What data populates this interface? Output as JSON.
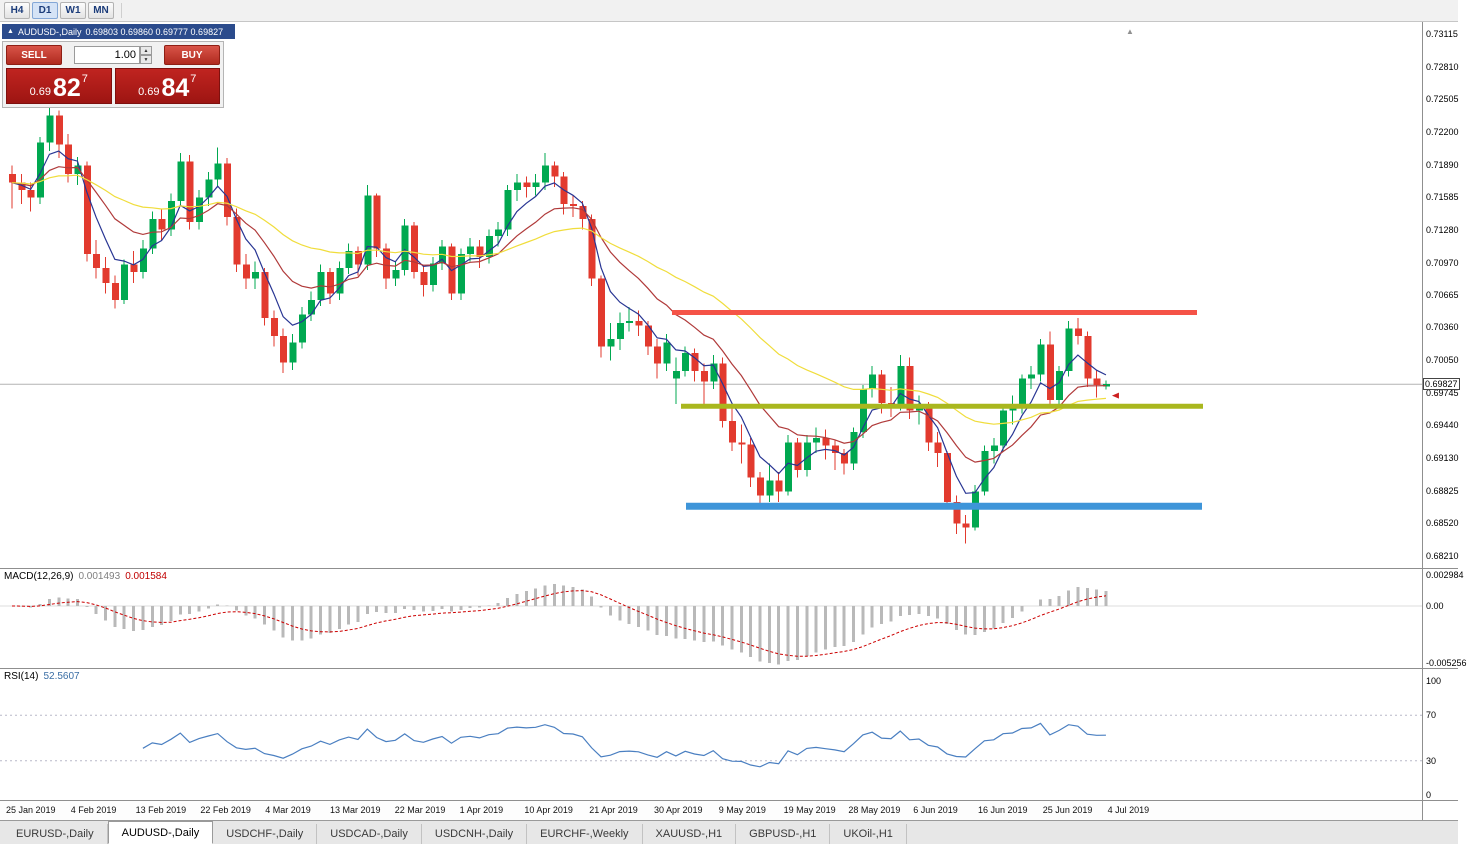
{
  "toolbar": {
    "timeframes": [
      "H4",
      "D1",
      "W1",
      "MN"
    ],
    "active_timeframe": "D1"
  },
  "chart_window": {
    "title_symbol": "AUDUSD-,Daily",
    "title_ohlc": "0.69803 0.69860 0.69777 0.69827",
    "current_price": "0.69827",
    "price_scale_labels": [
      "0.73115",
      "0.72810",
      "0.72505",
      "0.72200",
      "0.71890",
      "0.71585",
      "0.71280",
      "0.70970",
      "0.70665",
      "0.70360",
      "0.70050",
      "0.69745",
      "0.69440",
      "0.69130",
      "0.68825",
      "0.68520",
      "0.68210"
    ],
    "date_axis_labels": [
      "25 Jan 2019",
      "4 Feb 2019",
      "13 Feb 2019",
      "22 Feb 2019",
      "4 Mar 2019",
      "13 Mar 2019",
      "22 Mar 2019",
      "1 Apr 2019",
      "10 Apr 2019",
      "21 Apr 2019",
      "30 Apr 2019",
      "9 May 2019",
      "19 May 2019",
      "28 May 2019",
      "6 Jun 2019",
      "16 Jun 2019",
      "25 Jun 2019",
      "4 Jul 2019"
    ]
  },
  "one_click_trading": {
    "sell_label": "SELL",
    "buy_label": "BUY",
    "volume": "1.00",
    "bid": {
      "prefix": "0.69",
      "big": "82",
      "sup": "7"
    },
    "ask": {
      "prefix": "0.69",
      "big": "84",
      "sup": "7"
    }
  },
  "chart_data": {
    "type": "candlestick",
    "symbol": "AUDUSD",
    "timeframe": "Daily",
    "last_bar": {
      "open": 0.69803,
      "high": 0.6986,
      "low": 0.69777,
      "close": 0.69827
    },
    "y_range": [
      0.681,
      0.7323
    ],
    "bull_color": "#00a850",
    "bear_color": "#e23a2e",
    "candles": [
      [
        0.718,
        0.7188,
        0.7148,
        0.7172
      ],
      [
        0.7172,
        0.718,
        0.7152,
        0.7165
      ],
      [
        0.7165,
        0.7172,
        0.7145,
        0.7158
      ],
      [
        0.7158,
        0.7215,
        0.7152,
        0.721
      ],
      [
        0.721,
        0.7243,
        0.7202,
        0.7235
      ],
      [
        0.7235,
        0.724,
        0.7195,
        0.7208
      ],
      [
        0.7208,
        0.7218,
        0.7172,
        0.718
      ],
      [
        0.718,
        0.7196,
        0.717,
        0.7188
      ],
      [
        0.7188,
        0.7192,
        0.7098,
        0.7105
      ],
      [
        0.7105,
        0.7118,
        0.7082,
        0.7092
      ],
      [
        0.7092,
        0.7102,
        0.7068,
        0.7078
      ],
      [
        0.7078,
        0.7085,
        0.7054,
        0.7062
      ],
      [
        0.7062,
        0.71,
        0.7058,
        0.7095
      ],
      [
        0.7095,
        0.7108,
        0.7078,
        0.7088
      ],
      [
        0.7088,
        0.7118,
        0.7082,
        0.711
      ],
      [
        0.711,
        0.7145,
        0.7105,
        0.7138
      ],
      [
        0.7138,
        0.7148,
        0.7118,
        0.7128
      ],
      [
        0.7128,
        0.7162,
        0.7122,
        0.7155
      ],
      [
        0.7155,
        0.72,
        0.715,
        0.7192
      ],
      [
        0.7192,
        0.7198,
        0.7128,
        0.7135
      ],
      [
        0.7135,
        0.7165,
        0.7128,
        0.7158
      ],
      [
        0.7158,
        0.7182,
        0.715,
        0.7175
      ],
      [
        0.7175,
        0.7205,
        0.7168,
        0.719
      ],
      [
        0.719,
        0.7195,
        0.7132,
        0.714
      ],
      [
        0.714,
        0.7148,
        0.7088,
        0.7095
      ],
      [
        0.7095,
        0.7105,
        0.7072,
        0.7082
      ],
      [
        0.7082,
        0.7098,
        0.7072,
        0.7088
      ],
      [
        0.7088,
        0.7092,
        0.7038,
        0.7045
      ],
      [
        0.7045,
        0.7052,
        0.7018,
        0.7028
      ],
      [
        0.7028,
        0.7035,
        0.6993,
        0.7003
      ],
      [
        0.7003,
        0.703,
        0.6996,
        0.7022
      ],
      [
        0.7022,
        0.7055,
        0.7016,
        0.7048
      ],
      [
        0.7048,
        0.707,
        0.7042,
        0.7062
      ],
      [
        0.7062,
        0.7095,
        0.7056,
        0.7088
      ],
      [
        0.7088,
        0.7092,
        0.7058,
        0.7068
      ],
      [
        0.7068,
        0.7098,
        0.7062,
        0.7092
      ],
      [
        0.7092,
        0.7115,
        0.7086,
        0.7108
      ],
      [
        0.7108,
        0.7112,
        0.7085,
        0.7095
      ],
      [
        0.7095,
        0.717,
        0.709,
        0.716
      ],
      [
        0.716,
        0.7162,
        0.7102,
        0.711
      ],
      [
        0.711,
        0.7115,
        0.7072,
        0.7082
      ],
      [
        0.7082,
        0.7098,
        0.7075,
        0.709
      ],
      [
        0.709,
        0.7138,
        0.7085,
        0.7132
      ],
      [
        0.7132,
        0.7135,
        0.7082,
        0.7088
      ],
      [
        0.7088,
        0.7094,
        0.7065,
        0.7076
      ],
      [
        0.7076,
        0.7102,
        0.707,
        0.7096
      ],
      [
        0.7096,
        0.7118,
        0.709,
        0.7112
      ],
      [
        0.7112,
        0.7115,
        0.7062,
        0.7068
      ],
      [
        0.7068,
        0.711,
        0.7062,
        0.7105
      ],
      [
        0.7105,
        0.712,
        0.7098,
        0.7112
      ],
      [
        0.7112,
        0.7118,
        0.7092,
        0.7102
      ],
      [
        0.7102,
        0.7128,
        0.7096,
        0.7122
      ],
      [
        0.7122,
        0.7135,
        0.7112,
        0.7128
      ],
      [
        0.7128,
        0.717,
        0.7122,
        0.7165
      ],
      [
        0.7165,
        0.718,
        0.7155,
        0.7172
      ],
      [
        0.7172,
        0.7178,
        0.7158,
        0.7168
      ],
      [
        0.7168,
        0.718,
        0.716,
        0.7172
      ],
      [
        0.7172,
        0.72,
        0.7165,
        0.7188
      ],
      [
        0.7188,
        0.7192,
        0.7168,
        0.7178
      ],
      [
        0.7178,
        0.7182,
        0.7142,
        0.7152
      ],
      [
        0.7152,
        0.716,
        0.714,
        0.715
      ],
      [
        0.715,
        0.7155,
        0.7128,
        0.7138
      ],
      [
        0.7138,
        0.7142,
        0.7075,
        0.7082
      ],
      [
        0.7082,
        0.7085,
        0.7008,
        0.7018
      ],
      [
        0.7018,
        0.704,
        0.7005,
        0.7025
      ],
      [
        0.7025,
        0.705,
        0.7015,
        0.704
      ],
      [
        0.704,
        0.7055,
        0.7032,
        0.7042
      ],
      [
        0.7042,
        0.7052,
        0.7028,
        0.7038
      ],
      [
        0.7038,
        0.7042,
        0.701,
        0.7018
      ],
      [
        0.7018,
        0.7025,
        0.6988,
        0.7002
      ],
      [
        0.7002,
        0.703,
        0.6995,
        0.7022
      ],
      [
        0.6988,
        0.7008,
        0.6964,
        0.6995
      ],
      [
        0.6995,
        0.7018,
        0.699,
        0.7012
      ],
      [
        0.7012,
        0.7016,
        0.6985,
        0.6995
      ],
      [
        0.6995,
        0.7002,
        0.6963,
        0.6985
      ],
      [
        0.6985,
        0.701,
        0.6978,
        0.7002
      ],
      [
        0.7002,
        0.7008,
        0.6942,
        0.6948
      ],
      [
        0.6948,
        0.6962,
        0.692,
        0.6928
      ],
      [
        0.6928,
        0.6945,
        0.6908,
        0.6926
      ],
      [
        0.6926,
        0.6932,
        0.6886,
        0.6895
      ],
      [
        0.6895,
        0.69,
        0.687,
        0.6878
      ],
      [
        0.6878,
        0.6908,
        0.6872,
        0.6892
      ],
      [
        0.6892,
        0.69,
        0.6872,
        0.6882
      ],
      [
        0.6882,
        0.6935,
        0.6878,
        0.6928
      ],
      [
        0.6928,
        0.6932,
        0.6895,
        0.6902
      ],
      [
        0.6902,
        0.6935,
        0.6896,
        0.6928
      ],
      [
        0.6928,
        0.6942,
        0.6918,
        0.6932
      ],
      [
        0.6932,
        0.694,
        0.6912,
        0.6925
      ],
      [
        0.6925,
        0.693,
        0.6902,
        0.6918
      ],
      [
        0.6918,
        0.6922,
        0.6898,
        0.6908
      ],
      [
        0.6908,
        0.6942,
        0.6902,
        0.6938
      ],
      [
        0.6938,
        0.6982,
        0.6932,
        0.6978
      ],
      [
        0.6978,
        0.7,
        0.697,
        0.6992
      ],
      [
        0.6992,
        0.6996,
        0.6955,
        0.6965
      ],
      [
        0.6965,
        0.698,
        0.6952,
        0.6962
      ],
      [
        0.6962,
        0.701,
        0.6958,
        0.7
      ],
      [
        0.7,
        0.7008,
        0.695,
        0.6958
      ],
      [
        0.6958,
        0.6972,
        0.6945,
        0.6962
      ],
      [
        0.6962,
        0.6966,
        0.692,
        0.6928
      ],
      [
        0.6928,
        0.6938,
        0.6905,
        0.6918
      ],
      [
        0.6918,
        0.692,
        0.6865,
        0.6872
      ],
      [
        0.6872,
        0.6878,
        0.6842,
        0.6852
      ],
      [
        0.6852,
        0.686,
        0.6833,
        0.6848
      ],
      [
        0.6848,
        0.6888,
        0.6845,
        0.6882
      ],
      [
        0.6882,
        0.6925,
        0.6878,
        0.692
      ],
      [
        0.692,
        0.6932,
        0.6908,
        0.6925
      ],
      [
        0.6925,
        0.6962,
        0.692,
        0.6958
      ],
      [
        0.6958,
        0.6972,
        0.6945,
        0.6962
      ],
      [
        0.6962,
        0.6992,
        0.6955,
        0.6988
      ],
      [
        0.6988,
        0.7,
        0.6978,
        0.6992
      ],
      [
        0.6992,
        0.7025,
        0.6985,
        0.702
      ],
      [
        0.702,
        0.7032,
        0.696,
        0.6968
      ],
      [
        0.6968,
        0.7,
        0.6962,
        0.6995
      ],
      [
        0.6995,
        0.7042,
        0.699,
        0.7035
      ],
      [
        0.7035,
        0.7045,
        0.702,
        0.7028
      ],
      [
        0.7028,
        0.7032,
        0.698,
        0.6988
      ],
      [
        0.6988,
        0.6996,
        0.697,
        0.6982
      ],
      [
        0.69803,
        0.6986,
        0.69777,
        0.69827
      ]
    ],
    "moving_averages": [
      {
        "period": 5,
        "color": "#283593"
      },
      {
        "period": 13,
        "color": "#b03a3a"
      },
      {
        "period": 34,
        "color": "#f0dd3c"
      }
    ],
    "horizontal_lines": [
      {
        "price": 0.705,
        "color": "#f55347",
        "thickness": 5,
        "x1": 672,
        "x2": 1197
      },
      {
        "price": 0.6962,
        "color": "#a9b71e",
        "thickness": 5,
        "x1": 681,
        "x2": 1203
      },
      {
        "price": 0.6868,
        "color": "#3e95d9",
        "thickness": 7,
        "x1": 686,
        "x2": 1202
      }
    ],
    "sell_marker": {
      "price": 0.6972,
      "color": "#cc1f1f"
    }
  },
  "macd_panel": {
    "label": "MACD(12,26,9)",
    "value_main": "0.001493",
    "value_signal": "0.001584",
    "scale_labels": [
      "0.002984",
      "0.00",
      "-0.005256"
    ],
    "params": {
      "fast": 12,
      "slow": 26,
      "signal": 9
    },
    "histogram_color": "#b9b9b9",
    "signal_color": "#cc0000"
  },
  "rsi_panel": {
    "label": "RSI(14)",
    "value": "52.5607",
    "period": 14,
    "scale_labels": [
      "100",
      "70",
      "30",
      "0"
    ],
    "levels": [
      70,
      30
    ],
    "line_color": "#4a7fc1"
  },
  "tab_bar": {
    "tabs": [
      "EURUSD-,Daily",
      "AUDUSD-,Daily",
      "USDCHF-,Daily",
      "USDCAD-,Daily",
      "USDCNH-,Daily",
      "EURCHF-,Weekly",
      "XAUUSD-,H1",
      "GBPUSD-,H1",
      "UKOil-,H1"
    ],
    "active_tab": "AUDUSD-,Daily"
  }
}
